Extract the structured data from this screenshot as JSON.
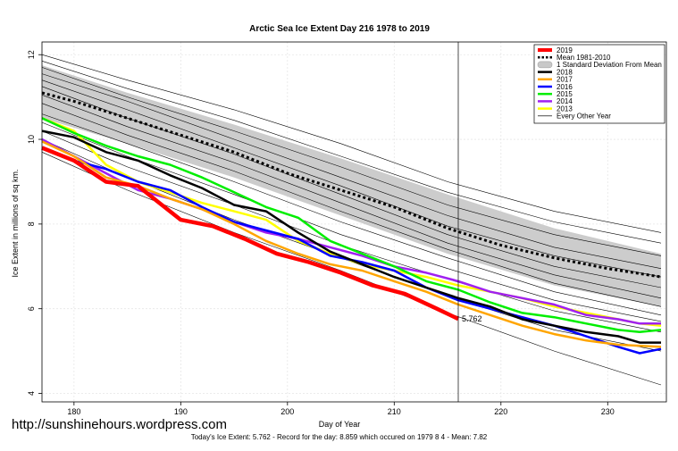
{
  "chart_data": {
    "type": "line",
    "title": "Arctic Sea Ice Extent Day 216 1978 to 2019",
    "xlabel": "Day of Year",
    "ylabel": "Ice Extent in millions of sq km.",
    "xlim": [
      177,
      235.5
    ],
    "ylim": [
      3.8,
      12.3
    ],
    "x_ticks": [
      180,
      190,
      200,
      210,
      220,
      230
    ],
    "y_ticks": [
      4,
      6,
      8,
      10,
      12
    ],
    "grid": true,
    "legend_position": "top-right",
    "vertical_line_x": 216,
    "annotation": {
      "x": 216,
      "y": 5.76,
      "text": "5.762",
      "color": "#ff0000"
    },
    "legend": [
      {
        "label": "2019",
        "color": "#ff0000",
        "style": "thick"
      },
      {
        "label": "Mean 1981-2010",
        "color": "#000000",
        "style": "dotted"
      },
      {
        "label": "1 Standard Deviation From Mean",
        "color": "#c8c8c8",
        "style": "band"
      },
      {
        "label": "2018",
        "color": "#000000",
        "style": "solid"
      },
      {
        "label": "2017",
        "color": "#ffa500",
        "style": "solid"
      },
      {
        "label": "2016",
        "color": "#0000ff",
        "style": "solid"
      },
      {
        "label": "2015",
        "color": "#00ee00",
        "style": "solid"
      },
      {
        "label": "2014",
        "color": "#a020f0",
        "style": "solid"
      },
      {
        "label": "2013",
        "color": "#ffff00",
        "style": "solid"
      },
      {
        "label": "Every Other Year",
        "color": "#000000",
        "style": "thin"
      }
    ],
    "band": {
      "x": [
        177,
        185,
        195,
        205,
        215,
        225,
        235
      ],
      "upper": [
        11.75,
        11.1,
        10.35,
        9.55,
        8.7,
        7.9,
        7.3
      ],
      "lower": [
        10.5,
        9.9,
        9.1,
        8.2,
        7.3,
        6.55,
        6.05
      ]
    },
    "mean": {
      "name": "Mean 1981-2010",
      "x": [
        177,
        180,
        185,
        190,
        195,
        200,
        205,
        210,
        215,
        220,
        225,
        230,
        235
      ],
      "values": [
        11.1,
        10.9,
        10.5,
        10.1,
        9.7,
        9.2,
        8.8,
        8.4,
        7.9,
        7.5,
        7.2,
        6.95,
        6.75
      ]
    },
    "series": [
      {
        "name": "2019",
        "color": "#ff0000",
        "x": [
          177,
          180,
          183,
          186,
          188,
          190,
          193,
          196,
          199,
          202,
          205,
          208,
          211,
          214,
          216
        ],
        "values": [
          9.8,
          9.5,
          9.0,
          8.9,
          8.5,
          8.1,
          7.95,
          7.65,
          7.3,
          7.1,
          6.85,
          6.55,
          6.35,
          6.0,
          5.76
        ]
      },
      {
        "name": "2018",
        "color": "#000000",
        "x": [
          177,
          180,
          183,
          186,
          189,
          192,
          195,
          198,
          201,
          204,
          207,
          210,
          213,
          216,
          219,
          222,
          225,
          228,
          231,
          233,
          235
        ],
        "values": [
          10.2,
          10.05,
          9.7,
          9.5,
          9.15,
          8.85,
          8.45,
          8.3,
          7.8,
          7.35,
          7.05,
          6.75,
          6.5,
          6.25,
          6.05,
          5.75,
          5.6,
          5.45,
          5.35,
          5.2,
          5.2
        ]
      },
      {
        "name": "2017",
        "color": "#ffa500",
        "x": [
          177,
          180,
          183,
          186,
          189,
          192,
          195,
          198,
          201,
          204,
          207,
          210,
          213,
          216,
          219,
          222,
          225,
          228,
          231,
          235
        ],
        "values": [
          9.95,
          9.6,
          9.1,
          8.9,
          8.6,
          8.35,
          8.0,
          7.6,
          7.3,
          7.05,
          6.9,
          6.65,
          6.4,
          6.1,
          5.85,
          5.6,
          5.4,
          5.25,
          5.15,
          5.1
        ]
      },
      {
        "name": "2016",
        "color": "#0000ff",
        "x": [
          177,
          180,
          183,
          186,
          189,
          192,
          195,
          198,
          201,
          204,
          207,
          210,
          213,
          216,
          219,
          222,
          225,
          228,
          231,
          233,
          235
        ],
        "values": [
          9.8,
          9.5,
          9.3,
          9.0,
          8.8,
          8.4,
          8.05,
          7.85,
          7.65,
          7.25,
          7.1,
          6.9,
          6.5,
          6.2,
          6.0,
          5.8,
          5.6,
          5.35,
          5.1,
          4.95,
          5.05
        ]
      },
      {
        "name": "2015",
        "color": "#00ee00",
        "x": [
          177,
          180,
          183,
          186,
          189,
          192,
          195,
          198,
          201,
          204,
          207,
          210,
          213,
          216,
          219,
          222,
          225,
          228,
          231,
          233,
          235
        ],
        "values": [
          10.5,
          10.15,
          9.85,
          9.6,
          9.4,
          9.1,
          8.75,
          8.4,
          8.15,
          7.6,
          7.3,
          7.0,
          6.65,
          6.45,
          6.15,
          5.9,
          5.8,
          5.65,
          5.5,
          5.45,
          5.5
        ]
      },
      {
        "name": "2014",
        "color": "#a020f0",
        "x": [
          177,
          180,
          183,
          186,
          189,
          192,
          195,
          198,
          201,
          204,
          207,
          210,
          213,
          216,
          219,
          222,
          225,
          228,
          231,
          233,
          235
        ],
        "values": [
          10.0,
          9.6,
          9.2,
          8.8,
          8.6,
          8.35,
          8.05,
          7.8,
          7.65,
          7.45,
          7.25,
          7.0,
          6.85,
          6.65,
          6.4,
          6.25,
          6.1,
          5.85,
          5.75,
          5.65,
          5.65
        ]
      },
      {
        "name": "2013",
        "color": "#ffff00",
        "x": [
          177,
          180,
          183,
          186,
          189,
          192,
          195,
          198,
          201,
          204,
          207,
          210,
          213,
          216,
          219,
          222,
          225,
          228,
          231,
          233,
          235
        ],
        "values": [
          10.5,
          10.2,
          9.4,
          9.0,
          8.75,
          8.5,
          8.3,
          8.1,
          7.6,
          7.3,
          7.05,
          6.9,
          6.75,
          6.55,
          6.4,
          6.25,
          6.05,
          5.9,
          5.75,
          5.65,
          5.6
        ]
      },
      {
        "name": "Every Other Year",
        "color": "#000000",
        "thin": true,
        "x": [
          177,
          185,
          195,
          205,
          215,
          225,
          235
        ],
        "values": [
          12.0,
          11.4,
          10.7,
          9.9,
          9.0,
          8.3,
          7.8
        ]
      },
      {
        "name": "",
        "color": "#000000",
        "thin": true,
        "x": [
          177,
          185,
          195,
          205,
          215,
          225,
          235
        ],
        "values": [
          11.85,
          11.2,
          10.45,
          9.6,
          8.75,
          8.05,
          7.55
        ]
      },
      {
        "name": "",
        "color": "#000000",
        "thin": true,
        "x": [
          177,
          185,
          195,
          205,
          215,
          225,
          235
        ],
        "values": [
          11.7,
          11.0,
          10.2,
          9.35,
          8.45,
          7.75,
          7.25
        ]
      },
      {
        "name": "",
        "color": "#000000",
        "thin": true,
        "x": [
          177,
          185,
          195,
          205,
          215,
          225,
          235
        ],
        "values": [
          11.55,
          10.9,
          10.0,
          9.1,
          8.2,
          7.45,
          6.95
        ]
      },
      {
        "name": "",
        "color": "#000000",
        "thin": true,
        "x": [
          177,
          185,
          195,
          205,
          215,
          225,
          235
        ],
        "values": [
          11.4,
          10.7,
          9.8,
          8.9,
          7.95,
          7.25,
          6.75
        ]
      },
      {
        "name": "",
        "color": "#000000",
        "thin": true,
        "x": [
          177,
          185,
          195,
          205,
          215,
          225,
          235
        ],
        "values": [
          11.25,
          10.5,
          9.65,
          8.7,
          7.75,
          7.0,
          6.5
        ]
      },
      {
        "name": "",
        "color": "#000000",
        "thin": true,
        "x": [
          177,
          185,
          195,
          205,
          215,
          225,
          235
        ],
        "values": [
          11.05,
          10.3,
          9.45,
          8.5,
          7.55,
          6.8,
          6.25
        ]
      },
      {
        "name": "",
        "color": "#000000",
        "thin": true,
        "x": [
          177,
          185,
          195,
          205,
          215,
          225,
          235
        ],
        "values": [
          10.85,
          10.1,
          9.25,
          8.3,
          7.4,
          6.6,
          6.05
        ]
      },
      {
        "name": "",
        "color": "#000000",
        "thin": true,
        "x": [
          177,
          185,
          195,
          205,
          215,
          225,
          235
        ],
        "values": [
          10.6,
          9.9,
          9.0,
          8.05,
          7.2,
          6.4,
          5.85
        ]
      },
      {
        "name": "",
        "color": "#000000",
        "thin": true,
        "x": [
          177,
          185,
          195,
          205,
          215,
          225,
          235
        ],
        "values": [
          10.4,
          9.6,
          8.7,
          7.75,
          6.95,
          6.2,
          5.7
        ]
      },
      {
        "name": "",
        "color": "#000000",
        "thin": true,
        "x": [
          177,
          185,
          195,
          205,
          215,
          225,
          235
        ],
        "values": [
          10.2,
          9.35,
          8.45,
          7.5,
          6.7,
          5.95,
          5.45
        ]
      },
      {
        "name": "",
        "color": "#000000",
        "thin": true,
        "x": [
          177,
          185,
          195,
          205,
          215,
          225,
          235
        ],
        "values": [
          10.0,
          9.1,
          8.1,
          7.2,
          6.3,
          5.5,
          5.0
        ]
      },
      {
        "name": "",
        "color": "#000000",
        "thin": true,
        "x": [
          177,
          185,
          195,
          205,
          215,
          225,
          235
        ],
        "values": [
          9.7,
          8.8,
          7.8,
          6.9,
          5.9,
          5.0,
          4.2
        ]
      }
    ]
  },
  "footer_text": "Today's Ice Extent: 5.762  - Record for the day: 8.859 which occured on 1979 8 4  - Mean: 7.82",
  "watermark_text": "http://sunshinehours.wordpress.com"
}
